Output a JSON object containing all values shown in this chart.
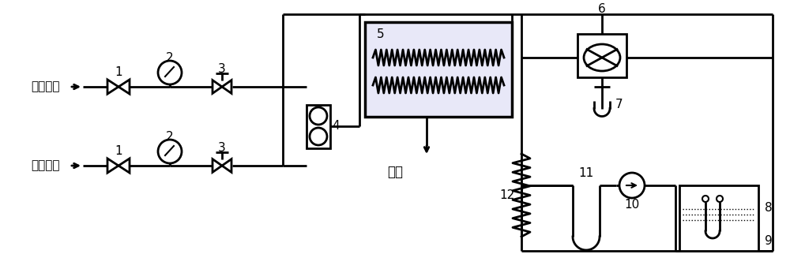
{
  "bg": "#ffffff",
  "lc": "#000000",
  "lw": 2.0,
  "inert_label": "惰性气体",
  "reduce_label": "还原气体",
  "vent_label": "放空"
}
